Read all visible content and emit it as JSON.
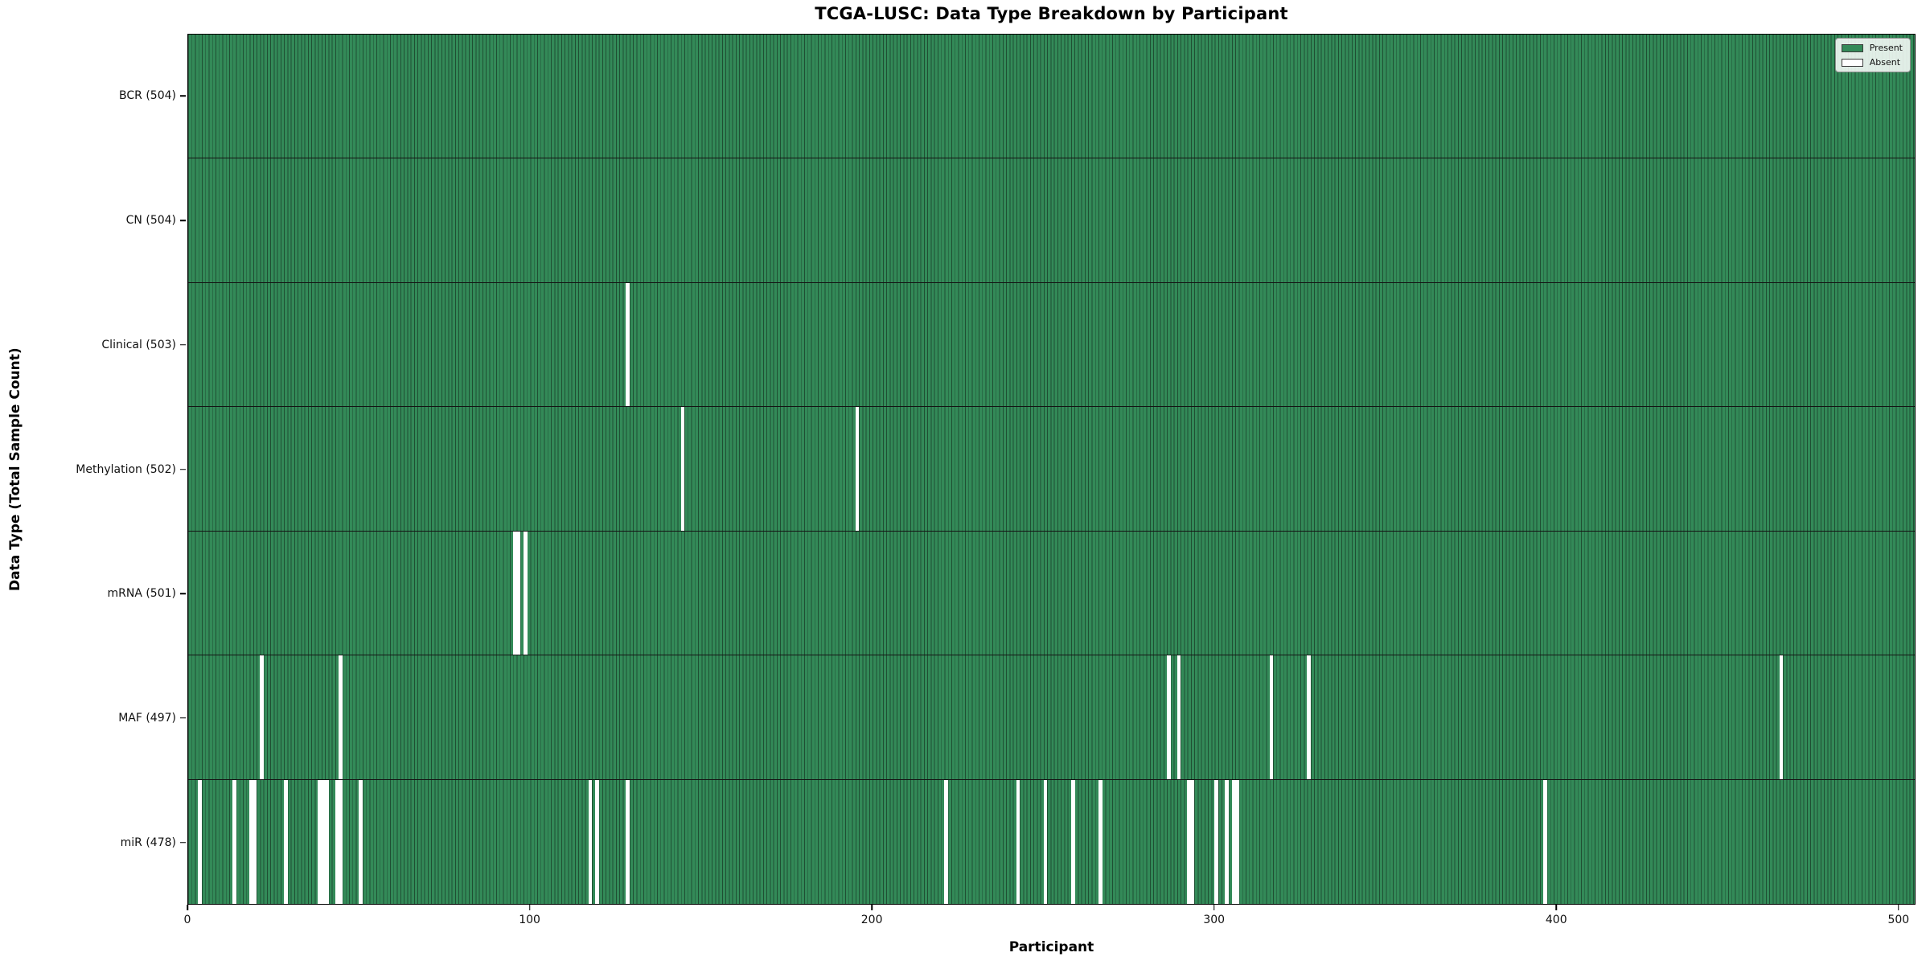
{
  "title": "TCGA-LUSC: Data Type Breakdown by Participant",
  "xlabel": "Participant",
  "ylabel": "Data Type (Total Sample Count)",
  "legend": {
    "present_label": "Present",
    "absent_label": "Absent"
  },
  "colors": {
    "present": "#338a58",
    "bar_edge": "#1f4f33",
    "absent": "#ffffff",
    "row_separator": "#141414",
    "axis": "#000000"
  },
  "chart_data": {
    "type": "heatmap",
    "title": "TCGA-LUSC: Data Type Breakdown by Participant",
    "xlabel": "Participant",
    "ylabel": "Data Type (Total Sample Count)",
    "legend": [
      "Present",
      "Absent"
    ],
    "legend_position": "upper right",
    "grid": false,
    "total_participants": 504,
    "xlim": [
      0,
      504.5
    ],
    "x_ticks": [
      0,
      100,
      200,
      300,
      400,
      500
    ],
    "rows": [
      {
        "name": "BCR",
        "label": "BCR (504)",
        "present_count": 504,
        "absent_participants": []
      },
      {
        "name": "CN",
        "label": "CN (504)",
        "present_count": 504,
        "absent_participants": []
      },
      {
        "name": "Clinical",
        "label": "Clinical (503)",
        "present_count": 503,
        "absent_participants": [
          128
        ]
      },
      {
        "name": "Methylation",
        "label": "Methylation (502)",
        "present_count": 502,
        "absent_participants": [
          144,
          195
        ]
      },
      {
        "name": "mRNA",
        "label": "mRNA (501)",
        "present_count": 501,
        "absent_participants": [
          95,
          96,
          98
        ]
      },
      {
        "name": "MAF",
        "label": "MAF (497)",
        "present_count": 497,
        "absent_participants": [
          21,
          44,
          286,
          289,
          316,
          327,
          465
        ]
      },
      {
        "name": "miR",
        "label": "miR (478)",
        "present_count": 478,
        "absent_participants": [
          3,
          13,
          18,
          19,
          28,
          38,
          39,
          40,
          43,
          44,
          50,
          117,
          119,
          128,
          221,
          242,
          250,
          258,
          266,
          292,
          293,
          300,
          303,
          305,
          306,
          396
        ]
      }
    ]
  }
}
